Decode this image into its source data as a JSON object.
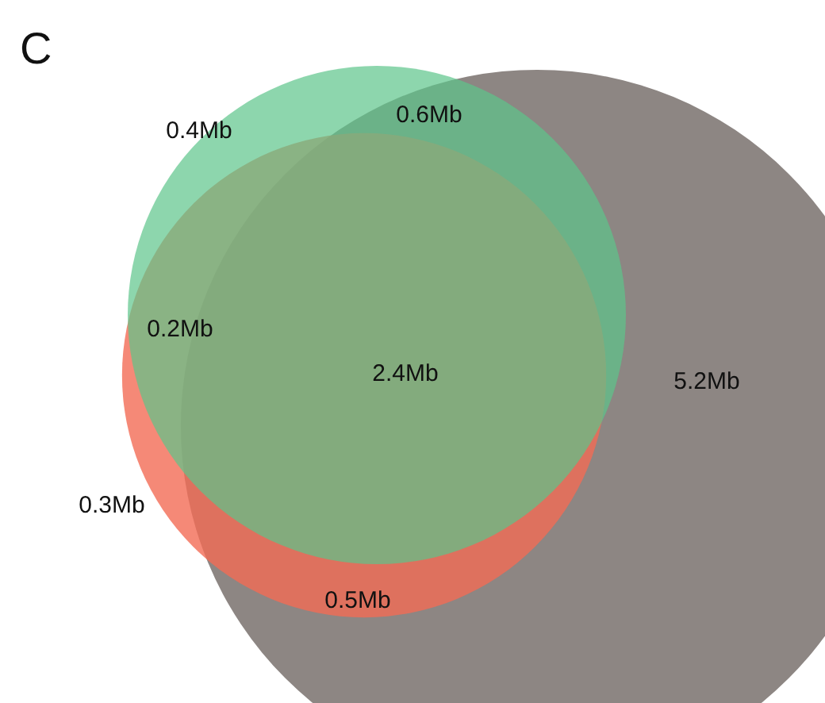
{
  "chart_data": {
    "type": "other",
    "title": "C",
    "categories": [
      null,
      null,
      null,
      null,
      null,
      null,
      null
    ],
    "values": [
      0.4,
      0.6,
      0.2,
      2.4,
      5.2,
      0.3,
      0.5
    ],
    "value_labels": [
      "0.4Mb",
      "0.6Mb",
      "0.2Mb",
      "2.4Mb",
      "5.2Mb",
      "0.3Mb",
      "0.5Mb"
    ]
  }
}
